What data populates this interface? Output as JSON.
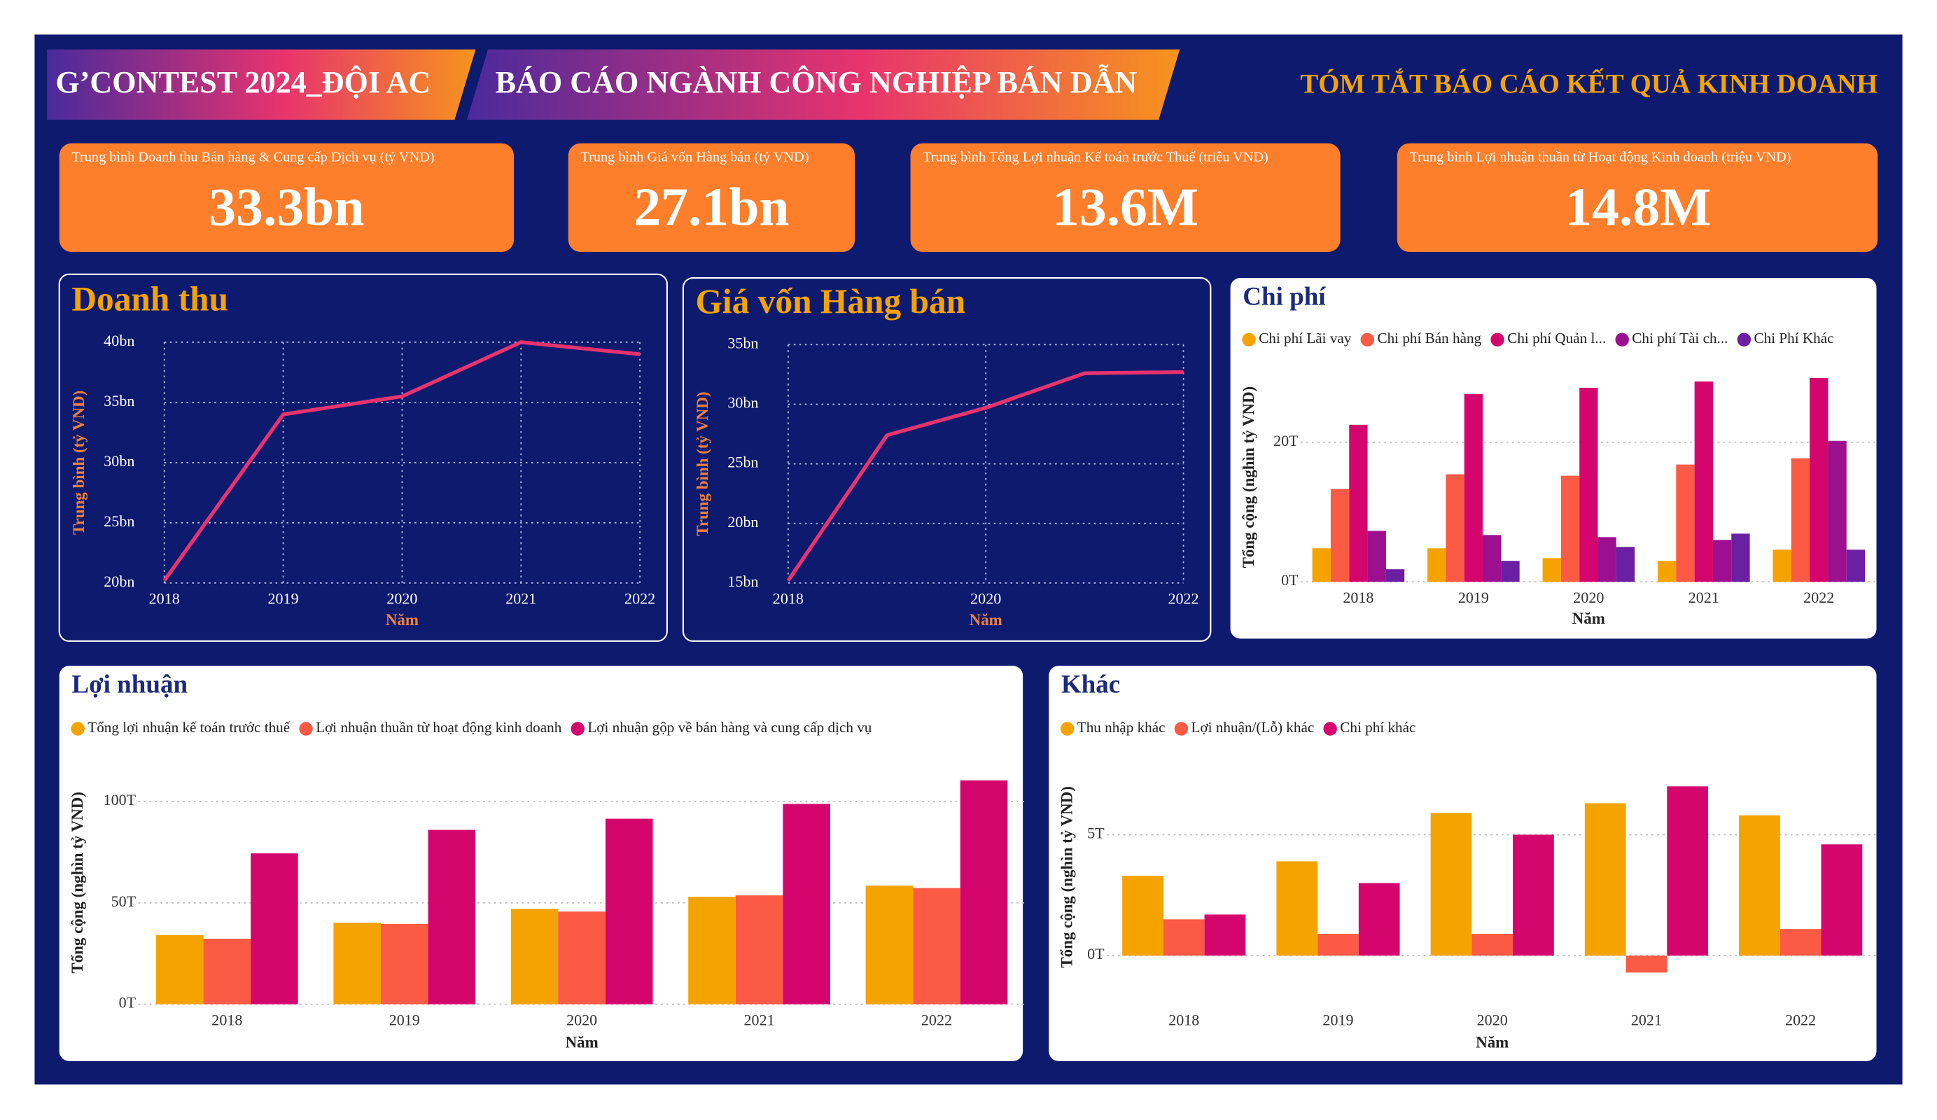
{
  "header": {
    "left_title": "G’CONTEST 2024_ĐỘI AC",
    "center_title": "BÁO CÁO NGÀNH CÔNG NGHIỆP BÁN DẪN",
    "right_title": "TÓM TẮT BÁO CÁO KẾT QUẢ KINH DOANH"
  },
  "kpis": [
    {
      "label": "Trung bình Doanh thu Bán hàng & Cung cấp Dịch vụ (tỷ VND)",
      "value": "33.3bn"
    },
    {
      "label": "Trung bình Giá vốn Hàng bán (tỷ VND)",
      "value": "27.1bn"
    },
    {
      "label": "Trung bình Tổng Lợi nhuận Kế toán trước Thuế (triệu VND)",
      "value": "13.6M"
    },
    {
      "label": "Trung bình Lợi nhuận thuần từ Hoạt động Kinh doanh (triệu VND)",
      "value": "14.8M"
    }
  ],
  "chart_data": [
    {
      "type": "line",
      "title": "Doanh thu",
      "x_label": "Năm",
      "y_label": "Trung bình (tỷ VND)",
      "color": "#e8336e",
      "grid": true,
      "x": [
        2018,
        2019,
        2020,
        2021,
        2022
      ],
      "values": [
        20.2,
        34.0,
        35.5,
        40.0,
        39.0
      ],
      "xlim": [
        2018,
        2022
      ],
      "xticks": [
        2018,
        2019,
        2020,
        2021,
        2022
      ],
      "ylim": [
        20,
        40
      ],
      "yticks": [
        {
          "value": 20,
          "label": "20bn"
        },
        {
          "value": 25,
          "label": "25bn"
        },
        {
          "value": 30,
          "label": "30bn"
        },
        {
          "value": 35,
          "label": "35bn"
        },
        {
          "value": 40,
          "label": "40bn"
        }
      ]
    },
    {
      "type": "line",
      "title": "Giá vốn Hàng bán",
      "x_label": "Năm",
      "y_label": "Trung bình (tỷ VND)",
      "color": "#e8336e",
      "grid": true,
      "x": [
        2018,
        2019,
        2020,
        2021,
        2022
      ],
      "values": [
        15.2,
        27.4,
        29.7,
        32.6,
        32.7
      ],
      "xlim": [
        2018,
        2022
      ],
      "xticks": [
        2018,
        2020,
        2022
      ],
      "ylim": [
        15,
        35
      ],
      "yticks": [
        {
          "value": 15,
          "label": "15bn"
        },
        {
          "value": 20,
          "label": "20bn"
        },
        {
          "value": 25,
          "label": "25bn"
        },
        {
          "value": 30,
          "label": "30bn"
        },
        {
          "value": 35,
          "label": "35bn"
        }
      ]
    },
    {
      "type": "bar",
      "title": "Chi phí",
      "x_label": "Năm",
      "y_label": "Tổng cộng (nghìn tỷ VND)",
      "grid": true,
      "categories": [
        "2018",
        "2019",
        "2020",
        "2021",
        "2022"
      ],
      "series": [
        {
          "name": "Chi phí Lãi vay",
          "color": "#f5a300",
          "values": [
            4.8,
            4.8,
            3.4,
            3.0,
            4.6
          ]
        },
        {
          "name": "Chi phí Bán hàng",
          "color": "#fb5a45",
          "values": [
            13.3,
            15.4,
            15.2,
            16.8,
            17.7
          ]
        },
        {
          "name": "Chi phí Quản l...",
          "color": "#d4066e",
          "values": [
            22.5,
            26.9,
            27.8,
            28.7,
            29.2
          ]
        },
        {
          "name": "Chi phí Tài ch...",
          "color": "#9c0f8e",
          "values": [
            7.3,
            6.7,
            6.4,
            6.0,
            20.2
          ]
        },
        {
          "name": "Chi Phí Khác",
          "color": "#6b1fa3",
          "values": [
            1.8,
            3.0,
            5.0,
            6.9,
            4.6
          ]
        }
      ],
      "ylim": [
        0,
        30
      ],
      "yticks": [
        {
          "value": 0,
          "label": "0T"
        },
        {
          "value": 20,
          "label": "20T"
        }
      ]
    },
    {
      "type": "bar",
      "title": "Lợi nhuận",
      "x_label": "Năm",
      "y_label": "Tổng cộng (nghìn tỷ VND)",
      "grid": true,
      "categories": [
        "2018",
        "2019",
        "2020",
        "2021",
        "2022"
      ],
      "series": [
        {
          "name": "Tổng lợi nhuận kế toán trước thuế",
          "color": "#f5a300",
          "values": [
            34.1,
            40.2,
            47.0,
            53.0,
            58.5
          ]
        },
        {
          "name": "Lợi nhuận thuần từ hoạt động kinh doanh",
          "color": "#fb5a45",
          "values": [
            32.3,
            39.6,
            45.7,
            53.7,
            57.3
          ]
        },
        {
          "name": "Lợi nhuận gộp về bán hàng và cung cấp dịch vụ",
          "color": "#d4066e",
          "values": [
            74.4,
            86.0,
            91.5,
            98.8,
            110.4
          ]
        }
      ],
      "ylim": [
        0,
        120
      ],
      "yticks": [
        {
          "value": 0,
          "label": "0T"
        },
        {
          "value": 50,
          "label": "50T"
        },
        {
          "value": 100,
          "label": "100T"
        }
      ]
    },
    {
      "type": "bar",
      "title": "Khác",
      "x_label": "Năm",
      "y_label": "Tổng cộng (nghìn tỷ VND)",
      "grid": true,
      "categories": [
        "2018",
        "2019",
        "2020",
        "2021",
        "2022"
      ],
      "series": [
        {
          "name": "Thu nhập khác",
          "color": "#f5a300",
          "values": [
            3.3,
            3.9,
            5.9,
            6.3,
            5.8
          ]
        },
        {
          "name": "Lợi nhuận/(Lỗ) khác",
          "color": "#fb5a45",
          "values": [
            1.5,
            0.9,
            0.9,
            -0.7,
            1.1
          ]
        },
        {
          "name": "Chi phí khác",
          "color": "#d4066e",
          "values": [
            1.7,
            3.0,
            5.0,
            7.0,
            4.6
          ]
        }
      ],
      "ylim": [
        -1.5,
        8
      ],
      "yticks": [
        {
          "value": 0,
          "label": "0T"
        },
        {
          "value": 5,
          "label": "5T"
        }
      ]
    }
  ]
}
